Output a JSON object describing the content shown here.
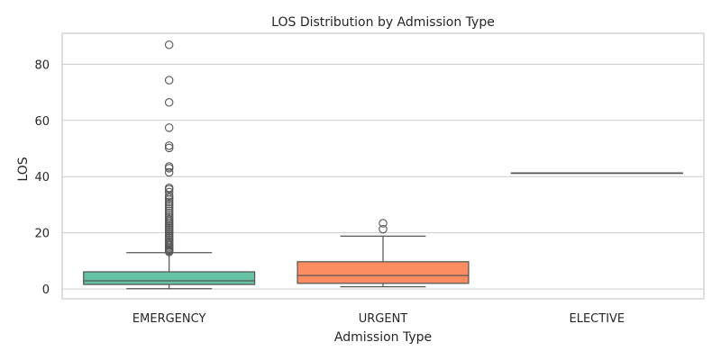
{
  "chart_data": {
    "type": "box",
    "title": "LOS Distribution by Admission Type",
    "xlabel": "Admission Type",
    "ylabel": "LOS",
    "ylim": [
      -3.5,
      91
    ],
    "yticks": [
      0,
      20,
      40,
      60,
      80
    ],
    "grid": "horizontal",
    "categories": [
      "EMERGENCY",
      "URGENT",
      "ELECTIVE"
    ],
    "boxes": [
      {
        "category": "EMERGENCY",
        "color": "#66c2a5",
        "whisker_low": 0.1,
        "q1": 1.6,
        "median": 2.9,
        "q3": 6.1,
        "whisker_high": 12.9,
        "outliers": [
          13.2,
          13.6,
          14.0,
          14.5,
          15.0,
          15.5,
          16.0,
          16.5,
          17.0,
          17.6,
          18.2,
          18.8,
          19.4,
          20.0,
          20.6,
          21.2,
          21.8,
          22.4,
          23.0,
          23.6,
          24.2,
          24.8,
          25.5,
          26.2,
          27.0,
          27.8,
          28.6,
          29.4,
          30.2,
          31.0,
          31.8,
          32.5,
          33.2,
          34.5,
          35.5,
          36.0,
          41.5,
          43.0,
          43.6,
          50.2,
          51.0,
          57.4,
          66.4,
          74.3,
          86.9
        ]
      },
      {
        "category": "URGENT",
        "color": "#fc8d62",
        "whisker_low": 0.8,
        "q1": 2.0,
        "median": 4.8,
        "q3": 9.7,
        "whisker_high": 18.8,
        "outliers": [
          21.3,
          23.4
        ]
      },
      {
        "category": "ELECTIVE",
        "color": "#8da0cb",
        "whisker_low": 41.3,
        "q1": 41.3,
        "median": 41.3,
        "q3": 41.3,
        "whisker_high": 41.3,
        "outliers": []
      }
    ]
  }
}
